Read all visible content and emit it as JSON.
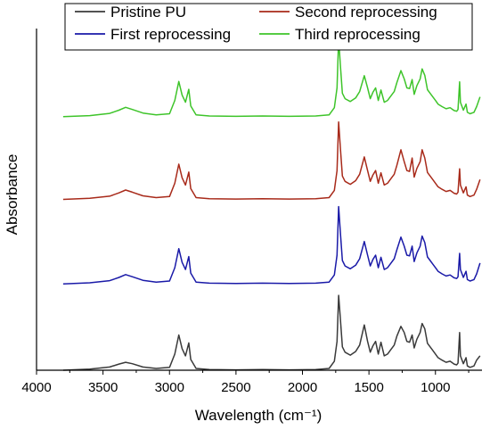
{
  "chart_data": {
    "type": "line",
    "xlabel": "Wavelength (cm⁻¹)",
    "ylabel": "Absorbance",
    "xlim": [
      4000,
      650
    ],
    "x_reversed": true,
    "x_ticks": [
      4000,
      3500,
      3000,
      2500,
      2000,
      1500,
      1000
    ],
    "y_ticks": [],
    "grid": false,
    "legend_position": "top",
    "series": [
      {
        "name": "Pristine PU",
        "color": "#3a3a3a",
        "offset": 0.0,
        "points": [
          [
            3800,
            0.0
          ],
          [
            3600,
            0.03
          ],
          [
            3450,
            0.09
          ],
          [
            3380,
            0.17
          ],
          [
            3330,
            0.22
          ],
          [
            3280,
            0.18
          ],
          [
            3200,
            0.09
          ],
          [
            3100,
            0.05
          ],
          [
            3000,
            0.08
          ],
          [
            2960,
            0.45
          ],
          [
            2930,
            0.98
          ],
          [
            2905,
            0.6
          ],
          [
            2880,
            0.4
          ],
          [
            2855,
            0.76
          ],
          [
            2840,
            0.3
          ],
          [
            2800,
            0.05
          ],
          [
            2700,
            0.02
          ],
          [
            2500,
            0.01
          ],
          [
            2300,
            0.02
          ],
          [
            2100,
            0.01
          ],
          [
            1900,
            0.02
          ],
          [
            1800,
            0.05
          ],
          [
            1760,
            0.25
          ],
          [
            1740,
            0.8
          ],
          [
            1728,
            2.08
          ],
          [
            1715,
            1.45
          ],
          [
            1700,
            0.65
          ],
          [
            1680,
            0.5
          ],
          [
            1640,
            0.42
          ],
          [
            1600,
            0.52
          ],
          [
            1570,
            0.7
          ],
          [
            1535,
            1.26
          ],
          [
            1510,
            0.8
          ],
          [
            1490,
            0.5
          ],
          [
            1470,
            0.68
          ],
          [
            1450,
            0.8
          ],
          [
            1430,
            0.45
          ],
          [
            1410,
            0.78
          ],
          [
            1385,
            0.4
          ],
          [
            1360,
            0.45
          ],
          [
            1340,
            0.55
          ],
          [
            1310,
            0.7
          ],
          [
            1290,
            0.95
          ],
          [
            1260,
            1.22
          ],
          [
            1235,
            1.05
          ],
          [
            1215,
            0.8
          ],
          [
            1195,
            0.78
          ],
          [
            1175,
            0.98
          ],
          [
            1160,
            0.62
          ],
          [
            1140,
            0.86
          ],
          [
            1115,
            1.05
          ],
          [
            1100,
            1.3
          ],
          [
            1080,
            1.15
          ],
          [
            1060,
            0.75
          ],
          [
            1040,
            0.65
          ],
          [
            1020,
            0.55
          ],
          [
            1000,
            0.45
          ],
          [
            980,
            0.35
          ],
          [
            950,
            0.28
          ],
          [
            920,
            0.22
          ],
          [
            890,
            0.25
          ],
          [
            860,
            0.17
          ],
          [
            840,
            0.15
          ],
          [
            830,
            0.2
          ],
          [
            818,
            1.05
          ],
          [
            812,
            0.4
          ],
          [
            790,
            0.18
          ],
          [
            770,
            0.35
          ],
          [
            760,
            0.12
          ],
          [
            740,
            0.08
          ],
          [
            710,
            0.12
          ],
          [
            690,
            0.28
          ],
          [
            665,
            0.4
          ]
        ]
      },
      {
        "name": "First reprocessing",
        "color": "#1a1aa8",
        "offset": 2.4,
        "points": [
          [
            3800,
            0.0
          ],
          [
            3600,
            0.03
          ],
          [
            3450,
            0.09
          ],
          [
            3380,
            0.18
          ],
          [
            3330,
            0.26
          ],
          [
            3280,
            0.2
          ],
          [
            3200,
            0.1
          ],
          [
            3100,
            0.05
          ],
          [
            3000,
            0.08
          ],
          [
            2960,
            0.45
          ],
          [
            2930,
            0.98
          ],
          [
            2905,
            0.6
          ],
          [
            2880,
            0.4
          ],
          [
            2855,
            0.76
          ],
          [
            2840,
            0.3
          ],
          [
            2800,
            0.05
          ],
          [
            2700,
            0.02
          ],
          [
            2500,
            0.01
          ],
          [
            2300,
            0.02
          ],
          [
            2100,
            0.01
          ],
          [
            1900,
            0.02
          ],
          [
            1800,
            0.05
          ],
          [
            1760,
            0.25
          ],
          [
            1740,
            0.8
          ],
          [
            1728,
            2.15
          ],
          [
            1715,
            1.45
          ],
          [
            1700,
            0.65
          ],
          [
            1680,
            0.5
          ],
          [
            1640,
            0.42
          ],
          [
            1600,
            0.52
          ],
          [
            1570,
            0.7
          ],
          [
            1535,
            1.18
          ],
          [
            1510,
            0.8
          ],
          [
            1490,
            0.5
          ],
          [
            1470,
            0.68
          ],
          [
            1450,
            0.8
          ],
          [
            1430,
            0.45
          ],
          [
            1410,
            0.74
          ],
          [
            1385,
            0.4
          ],
          [
            1360,
            0.45
          ],
          [
            1340,
            0.55
          ],
          [
            1310,
            0.7
          ],
          [
            1290,
            0.95
          ],
          [
            1260,
            1.3
          ],
          [
            1235,
            1.05
          ],
          [
            1215,
            0.8
          ],
          [
            1195,
            0.78
          ],
          [
            1175,
            1.05
          ],
          [
            1160,
            0.62
          ],
          [
            1140,
            0.86
          ],
          [
            1115,
            1.05
          ],
          [
            1100,
            1.33
          ],
          [
            1080,
            1.15
          ],
          [
            1060,
            0.75
          ],
          [
            1040,
            0.65
          ],
          [
            1020,
            0.55
          ],
          [
            1000,
            0.45
          ],
          [
            980,
            0.35
          ],
          [
            950,
            0.28
          ],
          [
            920,
            0.22
          ],
          [
            890,
            0.25
          ],
          [
            860,
            0.17
          ],
          [
            840,
            0.15
          ],
          [
            830,
            0.2
          ],
          [
            818,
            0.85
          ],
          [
            812,
            0.4
          ],
          [
            790,
            0.18
          ],
          [
            770,
            0.35
          ],
          [
            760,
            0.12
          ],
          [
            740,
            0.08
          ],
          [
            710,
            0.12
          ],
          [
            690,
            0.28
          ],
          [
            665,
            0.58
          ]
        ]
      },
      {
        "name": "Second reprocessing",
        "color": "#a82a1a",
        "offset": 4.75,
        "points": [
          [
            3800,
            0.0
          ],
          [
            3600,
            0.03
          ],
          [
            3450,
            0.09
          ],
          [
            3380,
            0.18
          ],
          [
            3330,
            0.26
          ],
          [
            3280,
            0.2
          ],
          [
            3200,
            0.1
          ],
          [
            3100,
            0.05
          ],
          [
            3000,
            0.08
          ],
          [
            2960,
            0.45
          ],
          [
            2930,
            0.98
          ],
          [
            2905,
            0.6
          ],
          [
            2880,
            0.4
          ],
          [
            2855,
            0.76
          ],
          [
            2840,
            0.3
          ],
          [
            2800,
            0.05
          ],
          [
            2700,
            0.02
          ],
          [
            2500,
            0.01
          ],
          [
            2300,
            0.02
          ],
          [
            2100,
            0.01
          ],
          [
            1900,
            0.02
          ],
          [
            1800,
            0.05
          ],
          [
            1760,
            0.25
          ],
          [
            1740,
            0.8
          ],
          [
            1728,
            2.15
          ],
          [
            1715,
            1.45
          ],
          [
            1700,
            0.65
          ],
          [
            1680,
            0.5
          ],
          [
            1640,
            0.42
          ],
          [
            1600,
            0.52
          ],
          [
            1570,
            0.7
          ],
          [
            1535,
            1.18
          ],
          [
            1510,
            0.8
          ],
          [
            1490,
            0.5
          ],
          [
            1470,
            0.68
          ],
          [
            1450,
            0.8
          ],
          [
            1430,
            0.45
          ],
          [
            1410,
            0.74
          ],
          [
            1385,
            0.4
          ],
          [
            1360,
            0.45
          ],
          [
            1340,
            0.55
          ],
          [
            1310,
            0.7
          ],
          [
            1290,
            0.95
          ],
          [
            1260,
            1.38
          ],
          [
            1235,
            1.05
          ],
          [
            1215,
            0.8
          ],
          [
            1195,
            0.78
          ],
          [
            1175,
            1.15
          ],
          [
            1160,
            0.62
          ],
          [
            1140,
            0.86
          ],
          [
            1115,
            1.05
          ],
          [
            1100,
            1.38
          ],
          [
            1080,
            1.15
          ],
          [
            1060,
            0.75
          ],
          [
            1040,
            0.65
          ],
          [
            1020,
            0.55
          ],
          [
            1000,
            0.45
          ],
          [
            980,
            0.35
          ],
          [
            950,
            0.28
          ],
          [
            920,
            0.22
          ],
          [
            890,
            0.25
          ],
          [
            860,
            0.17
          ],
          [
            840,
            0.15
          ],
          [
            830,
            0.2
          ],
          [
            818,
            0.85
          ],
          [
            812,
            0.4
          ],
          [
            790,
            0.18
          ],
          [
            770,
            0.35
          ],
          [
            760,
            0.12
          ],
          [
            740,
            0.08
          ],
          [
            710,
            0.12
          ],
          [
            690,
            0.28
          ],
          [
            665,
            0.55
          ]
        ]
      },
      {
        "name": "Third reprocessing",
        "color": "#3ec42a",
        "offset": 7.05,
        "points": [
          [
            3800,
            0.0
          ],
          [
            3600,
            0.03
          ],
          [
            3450,
            0.09
          ],
          [
            3380,
            0.18
          ],
          [
            3330,
            0.26
          ],
          [
            3280,
            0.2
          ],
          [
            3200,
            0.1
          ],
          [
            3100,
            0.05
          ],
          [
            3000,
            0.08
          ],
          [
            2960,
            0.45
          ],
          [
            2930,
            0.98
          ],
          [
            2905,
            0.6
          ],
          [
            2880,
            0.4
          ],
          [
            2855,
            0.76
          ],
          [
            2840,
            0.3
          ],
          [
            2800,
            0.05
          ],
          [
            2700,
            0.02
          ],
          [
            2500,
            0.01
          ],
          [
            2300,
            0.02
          ],
          [
            2100,
            0.01
          ],
          [
            1900,
            0.02
          ],
          [
            1800,
            0.05
          ],
          [
            1760,
            0.25
          ],
          [
            1740,
            0.8
          ],
          [
            1728,
            2.18
          ],
          [
            1715,
            1.45
          ],
          [
            1700,
            0.65
          ],
          [
            1680,
            0.5
          ],
          [
            1640,
            0.42
          ],
          [
            1600,
            0.52
          ],
          [
            1570,
            0.7
          ],
          [
            1535,
            1.14
          ],
          [
            1510,
            0.8
          ],
          [
            1490,
            0.5
          ],
          [
            1470,
            0.68
          ],
          [
            1450,
            0.8
          ],
          [
            1430,
            0.45
          ],
          [
            1410,
            0.74
          ],
          [
            1385,
            0.4
          ],
          [
            1360,
            0.45
          ],
          [
            1340,
            0.55
          ],
          [
            1310,
            0.7
          ],
          [
            1290,
            0.95
          ],
          [
            1260,
            1.28
          ],
          [
            1235,
            1.05
          ],
          [
            1215,
            0.8
          ],
          [
            1195,
            0.78
          ],
          [
            1175,
            1.03
          ],
          [
            1160,
            0.62
          ],
          [
            1140,
            0.86
          ],
          [
            1115,
            1.05
          ],
          [
            1100,
            1.33
          ],
          [
            1080,
            1.15
          ],
          [
            1060,
            0.75
          ],
          [
            1040,
            0.65
          ],
          [
            1020,
            0.55
          ],
          [
            1000,
            0.45
          ],
          [
            980,
            0.35
          ],
          [
            950,
            0.28
          ],
          [
            920,
            0.22
          ],
          [
            890,
            0.25
          ],
          [
            860,
            0.17
          ],
          [
            840,
            0.15
          ],
          [
            830,
            0.2
          ],
          [
            818,
            0.97
          ],
          [
            812,
            0.4
          ],
          [
            790,
            0.18
          ],
          [
            770,
            0.35
          ],
          [
            760,
            0.12
          ],
          [
            740,
            0.08
          ],
          [
            710,
            0.12
          ],
          [
            690,
            0.28
          ],
          [
            665,
            0.55
          ]
        ]
      }
    ]
  }
}
